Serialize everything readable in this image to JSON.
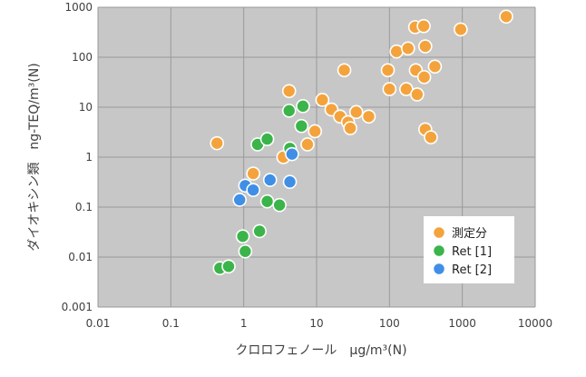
{
  "chart_data": {
    "type": "scatter",
    "xscale": "log",
    "yscale": "log",
    "xlim": [
      0.01,
      10000
    ],
    "ylim": [
      0.001,
      1000
    ],
    "grid": true,
    "legend_position": "bottom-right",
    "xlabel": "クロロフェノール　μg/m³(N)",
    "ylabel": "ダイオキシン類　ng-TEQ/m³(N)",
    "x_tick_labels": [
      "0.01",
      "0.1",
      "1",
      "10",
      "100",
      "1000",
      "10000"
    ],
    "y_tick_labels": [
      "0.001",
      "0.01",
      "0.1",
      "1",
      "10",
      "100",
      "1000"
    ],
    "series": [
      {
        "name": "測定分",
        "color": "#f4a33c",
        "points": [
          [
            0.43,
            1.9
          ],
          [
            1.35,
            0.47
          ],
          [
            3.5,
            1.0
          ],
          [
            4.2,
            21
          ],
          [
            7.5,
            1.8
          ],
          [
            9.5,
            3.3
          ],
          [
            12,
            14
          ],
          [
            16,
            9
          ],
          [
            21,
            6.5
          ],
          [
            24,
            55
          ],
          [
            27,
            5
          ],
          [
            29,
            3.8
          ],
          [
            35,
            8
          ],
          [
            52,
            6.5
          ],
          [
            95,
            55
          ],
          [
            100,
            23
          ],
          [
            125,
            130
          ],
          [
            170,
            23
          ],
          [
            180,
            150
          ],
          [
            225,
            400
          ],
          [
            230,
            55
          ],
          [
            240,
            18
          ],
          [
            295,
            420
          ],
          [
            310,
            165
          ],
          [
            300,
            40
          ],
          [
            310,
            3.6
          ],
          [
            370,
            2.5
          ],
          [
            420,
            65
          ],
          [
            950,
            360
          ],
          [
            4000,
            650
          ]
        ]
      },
      {
        "name": "Ret [1]",
        "color": "#3bb44a",
        "points": [
          [
            0.47,
            0.006
          ],
          [
            0.62,
            0.0065
          ],
          [
            0.97,
            0.026
          ],
          [
            1.05,
            0.013
          ],
          [
            1.65,
            0.033
          ],
          [
            1.55,
            1.8
          ],
          [
            2.1,
            2.3
          ],
          [
            2.1,
            0.13
          ],
          [
            3.1,
            0.11
          ],
          [
            4.2,
            8.5
          ],
          [
            4.3,
            1.5
          ],
          [
            6.2,
            4.2
          ],
          [
            6.5,
            10.5
          ]
        ]
      },
      {
        "name": "Ret [2]",
        "color": "#3f8fe6",
        "points": [
          [
            0.88,
            0.14
          ],
          [
            1.05,
            0.27
          ],
          [
            1.35,
            0.22
          ],
          [
            2.3,
            0.35
          ],
          [
            4.3,
            0.32
          ],
          [
            4.6,
            1.15
          ]
        ]
      }
    ]
  }
}
